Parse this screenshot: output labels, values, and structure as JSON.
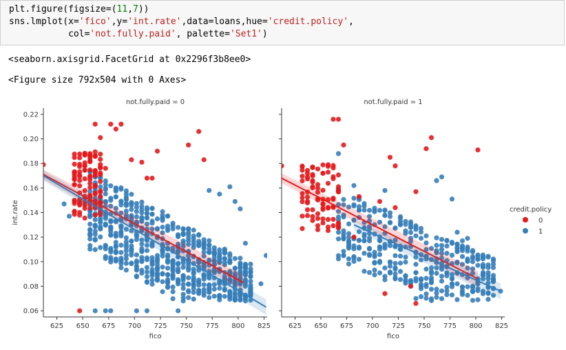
{
  "code": {
    "line1_pre": "plt.figure(figsize=(",
    "line1_n1": "11",
    "line1_mid": ",",
    "line1_n2": "7",
    "line1_post": "))",
    "line2_a": "sns.lmplot(x=",
    "line2_s1": "'fico'",
    "line2_b": ",y=",
    "line2_s2": "'int.rate'",
    "line2_c": ",data=loans,hue=",
    "line2_s3": "'credit.policy'",
    "line2_d": ",",
    "line3_a": "           col=",
    "line3_s1": "'not.fully.paid'",
    "line3_b": ", palette=",
    "line3_s2": "'Set1'",
    "line3_c": ")"
  },
  "outputs": {
    "facetgrid_repr": "<seaborn.axisgrid.FacetGrid at 0x2296f3b8ee0>",
    "figure_repr": "<Figure size 792x504 with 0 Axes>"
  },
  "colors": {
    "policy0": "#e41a1c",
    "policy1": "#377eb8"
  },
  "chart_data": [
    {
      "type": "scatter",
      "title": "not.fully.paid = 0",
      "xlabel": "fico",
      "ylabel": "int.rate",
      "xlim": [
        612,
        828
      ],
      "ylim": [
        0.055,
        0.225
      ],
      "xticks": [
        "625",
        "650",
        "675",
        "700",
        "725",
        "750",
        "775",
        "800",
        "825"
      ],
      "yticks": [
        "0.06",
        "0.08",
        "0.10",
        "0.12",
        "0.14",
        "0.16",
        "0.18",
        "0.20",
        "0.22"
      ],
      "series": [
        {
          "name": "0",
          "fit": [
            [
              612,
              0.171
            ],
            [
              805,
              0.083
            ]
          ],
          "points": [
            [
              612,
              0.179
            ],
            [
              642,
              0.17
            ],
            [
              642,
              0.15
            ],
            [
              647,
              0.06
            ],
            [
              652,
              0.178
            ],
            [
              657,
              0.188
            ],
            [
              662,
              0.212
            ],
            [
              667,
              0.201
            ],
            [
              672,
              0.176
            ],
            [
              677,
              0.212
            ],
            [
              682,
              0.208
            ],
            [
              687,
              0.212
            ],
            [
              697,
              0.183
            ],
            [
              707,
              0.181
            ],
            [
              717,
              0.168
            ],
            [
              722,
              0.19
            ],
            [
              752,
              0.195
            ],
            [
              762,
              0.206
            ],
            [
              767,
              0.183
            ],
            [
              712,
              0.168
            ],
            [
              657,
              0.15
            ],
            [
              662,
              0.138
            ]
          ]
        },
        {
          "name": "1",
          "fit": [
            [
              612,
              0.17
            ],
            [
              827,
              0.063
            ]
          ],
          "points": [
            [
              632,
              0.147
            ],
            [
              637,
              0.137
            ],
            [
              662,
              0.06
            ],
            [
              672,
              0.06
            ],
            [
              677,
              0.06
            ],
            [
              702,
              0.06
            ],
            [
              712,
              0.06
            ],
            [
              742,
              0.06
            ],
            [
              747,
              0.068
            ],
            [
              772,
              0.158
            ],
            [
              782,
              0.155
            ],
            [
              792,
              0.161
            ],
            [
              797,
              0.149
            ],
            [
              802,
              0.143
            ],
            [
              807,
              0.115
            ],
            [
              822,
              0.082
            ],
            [
              827,
              0.105
            ],
            [
              812,
              0.078
            ]
          ]
        }
      ],
      "legend": {
        "title": "credit.policy",
        "labels": [
          "0",
          "1"
        ],
        "position": "right"
      }
    },
    {
      "type": "scatter",
      "title": "not.fully.paid = 1",
      "xlabel": "fico",
      "ylabel": "",
      "xlim": [
        612,
        828
      ],
      "ylim": [
        0.055,
        0.225
      ],
      "xticks": [
        "625",
        "650",
        "675",
        "700",
        "725",
        "750",
        "775",
        "800",
        "825"
      ],
      "series": [
        {
          "name": "0",
          "fit": [
            [
              612,
              0.168
            ],
            [
              802,
              0.086
            ]
          ],
          "points": [
            [
              612,
              0.178
            ],
            [
              642,
              0.171
            ],
            [
              652,
              0.172
            ],
            [
              662,
              0.216
            ],
            [
              667,
              0.216
            ],
            [
              672,
              0.195
            ],
            [
              687,
              0.153
            ],
            [
              707,
              0.149
            ],
            [
              717,
              0.185
            ],
            [
              722,
              0.178
            ],
            [
              742,
              0.157
            ],
            [
              752,
              0.192
            ],
            [
              757,
              0.201
            ],
            [
              802,
              0.191
            ],
            [
              737,
              0.08
            ],
            [
              742,
              0.066
            ],
            [
              712,
              0.074
            ],
            [
              682,
              0.12
            ],
            [
              722,
              0.144
            ]
          ]
        },
        {
          "name": "1",
          "fit": [
            [
              682,
              0.13
            ],
            [
              824,
              0.076
            ]
          ],
          "points": [
            [
              667,
              0.188
            ],
            [
              682,
              0.162
            ],
            [
              697,
              0.117
            ],
            [
              712,
              0.158
            ],
            [
              762,
              0.166
            ],
            [
              767,
              0.169
            ],
            [
              772,
              0.117
            ],
            [
              782,
              0.124
            ],
            [
              787,
              0.117
            ],
            [
              792,
              0.119
            ],
            [
              797,
              0.108
            ],
            [
              802,
              0.097
            ],
            [
              807,
              0.086
            ],
            [
              812,
              0.079
            ],
            [
              817,
              0.078
            ],
            [
              824,
              0.076
            ],
            [
              777,
              0.151
            ],
            [
              742,
              0.07
            ]
          ]
        }
      ],
      "legend": {
        "title": "credit.policy",
        "labels": [
          "0",
          "1"
        ],
        "position": "right"
      }
    }
  ]
}
